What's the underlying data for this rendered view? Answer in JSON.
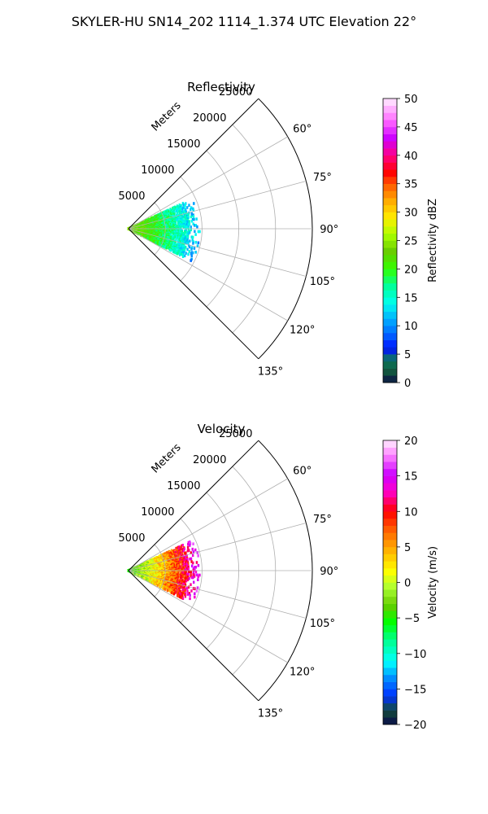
{
  "figure_title": "SKYLER-HU  SN14_202  1114_1.374 UTC Elevation 22°",
  "chart_data": [
    {
      "type": "polar-sector-heatmap",
      "title": "Reflectivity",
      "radial_label": "Meters",
      "theta_range_deg": [
        45,
        135
      ],
      "theta_ticks": [
        "60°",
        "75°",
        "90°",
        "105°",
        "120°",
        "135°"
      ],
      "theta_tick_values": [
        60,
        75,
        90,
        105,
        120,
        135
      ],
      "r_range": [
        0,
        25000
      ],
      "r_ticks": [
        "5000",
        "10000",
        "15000",
        "20000",
        "25000"
      ],
      "r_tick_values": [
        5000,
        10000,
        15000,
        20000,
        25000
      ],
      "grid": true,
      "colorbar": {
        "label": "Reflectivity dBZ",
        "range": [
          0,
          50
        ],
        "ticks": [
          "0",
          "5",
          "10",
          "15",
          "20",
          "25",
          "30",
          "35",
          "40",
          "45",
          "50"
        ],
        "tick_values": [
          0,
          5,
          10,
          15,
          20,
          25,
          30,
          35,
          40,
          45,
          50
        ],
        "colormap": "pyart_NWSRef"
      },
      "data_extent": {
        "theta_deg": [
          65,
          117
        ],
        "r_m": [
          0,
          9800
        ],
        "typical_value_range": [
          8,
          30
        ],
        "near_range_value": 24,
        "far_range_value": 11
      }
    },
    {
      "type": "polar-sector-heatmap",
      "title": "Velocity",
      "radial_label": "Meters",
      "theta_range_deg": [
        45,
        135
      ],
      "theta_ticks": [
        "60°",
        "75°",
        "90°",
        "105°",
        "120°",
        "135°"
      ],
      "theta_tick_values": [
        60,
        75,
        90,
        105,
        120,
        135
      ],
      "r_range": [
        0,
        25000
      ],
      "r_ticks": [
        "5000",
        "10000",
        "15000",
        "20000",
        "25000"
      ],
      "r_tick_values": [
        5000,
        10000,
        15000,
        20000,
        25000
      ],
      "grid": true,
      "colorbar": {
        "label": "Velocity (m/s)",
        "range": [
          -20,
          20
        ],
        "ticks": [
          "−20",
          "−15",
          "−10",
          "−5",
          "0",
          "5",
          "10",
          "15",
          "20"
        ],
        "tick_values": [
          -20,
          -15,
          -10,
          -5,
          0,
          5,
          10,
          15,
          20
        ],
        "colormap": "pyart_NWSVel"
      },
      "data_extent": {
        "theta_deg": [
          65,
          117
        ],
        "r_m": [
          0,
          9800
        ],
        "typical_value_range": [
          -6,
          18
        ],
        "near_range_value": -4,
        "far_range_value": 15
      }
    }
  ]
}
